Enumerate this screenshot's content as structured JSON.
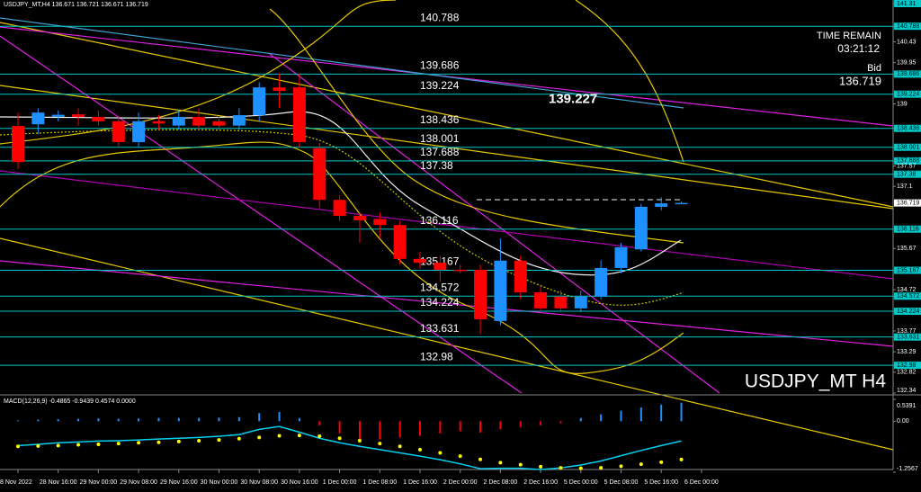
{
  "chart_data": [
    {
      "type": "candlestick",
      "title": "USDJPY_MT,H4 136.671 136.721 136.671 136.719",
      "watermark": "USDJPY_MT H4",
      "time_remain_label": "TIME REMAIN",
      "time_remain": "03:21:12",
      "bid_label": "Bid",
      "bid": 136.719,
      "annotation": 139.227,
      "x_labels": [
        "8 Nov 2022",
        "28 Nov 16:00",
        "29 Nov 00:00",
        "29 Nov 08:00",
        "29 Nov 16:00",
        "30 Nov 00:00",
        "30 Nov 08:00",
        "30 Nov 16:00",
        "1 Dec 00:00",
        "1 Dec 08:00",
        "1 Dec 16:00",
        "2 Dec 00:00",
        "2 Dec 08:00",
        "2 Dec 16:00",
        "5 Dec 00:00",
        "5 Dec 08:00",
        "5 Dec 16:00",
        "6 Dec 00:00"
      ],
      "open": [
        138.49,
        138.53,
        138.7,
        138.76,
        138.7,
        138.6,
        138.12,
        138.6,
        138.5,
        138.7,
        138.6,
        138.5,
        138.74,
        139.38,
        139.38,
        137.98,
        136.79,
        136.42,
        136.35,
        136.21,
        135.43,
        135.34,
        135.18,
        135.18,
        134.0,
        135.39,
        134.66,
        134.56,
        134.29,
        134.56,
        135.22,
        135.65,
        136.63,
        136.71
      ],
      "high": [
        138.8,
        138.9,
        138.85,
        138.9,
        138.85,
        138.7,
        138.8,
        138.75,
        138.85,
        138.9,
        138.7,
        138.9,
        139.5,
        139.7,
        139.7,
        138.1,
        136.9,
        136.5,
        136.5,
        136.3,
        135.6,
        135.5,
        135.3,
        135.3,
        135.9,
        135.5,
        134.8,
        134.7,
        134.7,
        135.4,
        135.8,
        136.7,
        136.85,
        136.75
      ],
      "low": [
        137.5,
        138.3,
        138.6,
        138.5,
        138.5,
        138.0,
        138.0,
        138.4,
        138.4,
        138.4,
        138.4,
        138.4,
        138.6,
        138.9,
        138.0,
        136.6,
        136.3,
        135.8,
        135.9,
        135.3,
        135.2,
        134.9,
        135.1,
        133.7,
        133.9,
        134.5,
        134.2,
        134.2,
        134.2,
        134.5,
        135.1,
        135.6,
        136.55,
        136.69
      ],
      "close": [
        137.66,
        138.8,
        138.75,
        138.7,
        138.6,
        138.12,
        138.6,
        138.55,
        138.7,
        138.5,
        138.5,
        138.74,
        139.38,
        139.3,
        138.12,
        136.79,
        136.42,
        136.32,
        136.21,
        135.43,
        135.34,
        135.18,
        135.15,
        134.04,
        135.39,
        134.66,
        134.29,
        134.29,
        134.56,
        135.22,
        135.7,
        136.63,
        136.71,
        136.719
      ],
      "up_color": "#1e90ff",
      "down_color": "#ff0000",
      "ylim": [
        132.34,
        141.31
      ],
      "yticks": [
        141.31,
        140.788,
        140.43,
        139.95,
        139.686,
        139.224,
        139.0,
        138.436,
        138.001,
        137.688,
        137.57,
        137.38,
        137.1,
        136.116,
        135.67,
        135.167,
        134.72,
        134.572,
        134.224,
        133.77,
        133.631,
        133.29,
        132.98,
        132.82,
        132.34
      ],
      "levels": [
        140.788,
        139.686,
        139.224,
        138.436,
        138.001,
        137.688,
        137.38,
        136.116,
        135.167,
        134.572,
        134.224,
        133.631,
        132.98
      ],
      "level_color": "#00c8c8"
    },
    {
      "type": "macd",
      "title": "MACD(12,26,9) -0.4865 -0.9439 0.4574 0.0000",
      "histogram": [
        0.02,
        0.04,
        0.05,
        0.06,
        0.07,
        0.06,
        0.07,
        0.08,
        0.08,
        0.08,
        0.09,
        0.1,
        0.2,
        0.23,
        0.08,
        -0.1,
        -0.3,
        -0.45,
        -0.45,
        -0.4,
        -0.36,
        -0.3,
        -0.25,
        -0.28,
        -0.2,
        -0.15,
        -0.1,
        -0.05,
        0.08,
        0.17,
        0.26,
        0.34,
        0.41,
        0.4574
      ],
      "macd": [
        -0.6,
        -0.57,
        -0.53,
        -0.51,
        -0.49,
        -0.48,
        -0.46,
        -0.44,
        -0.42,
        -0.4,
        -0.37,
        -0.33,
        -0.2,
        -0.13,
        -0.27,
        -0.42,
        -0.53,
        -0.62,
        -0.7,
        -0.78,
        -0.86,
        -0.95,
        -1.05,
        -1.17,
        -1.16,
        -1.16,
        -1.19,
        -1.15,
        -1.08,
        -0.98,
        -0.85,
        -0.72,
        -0.6,
        -0.4865
      ],
      "signal": [
        -0.62,
        -0.61,
        -0.6,
        -0.58,
        -0.57,
        -0.55,
        -0.53,
        -0.52,
        -0.5,
        -0.48,
        -0.46,
        -0.43,
        -0.4,
        -0.36,
        -0.35,
        -0.37,
        -0.42,
        -0.48,
        -0.55,
        -0.62,
        -0.7,
        -0.78,
        -0.86,
        -0.94,
        -1.02,
        -1.07,
        -1.12,
        -1.15,
        -1.16,
        -1.15,
        -1.11,
        -1.06,
        -1.01,
        -0.9439
      ],
      "histogram_up_color": "#1e90ff",
      "histogram_down_color": "#ff0000",
      "macd_color": "#00d0f0",
      "signal_color": "#ffff00",
      "ylim": [
        -1.2567,
        0.5391
      ],
      "yticks": [
        0.5391,
        {
          "value": 0,
          "label": "0.00"
        },
        -1.2567
      ]
    }
  ]
}
